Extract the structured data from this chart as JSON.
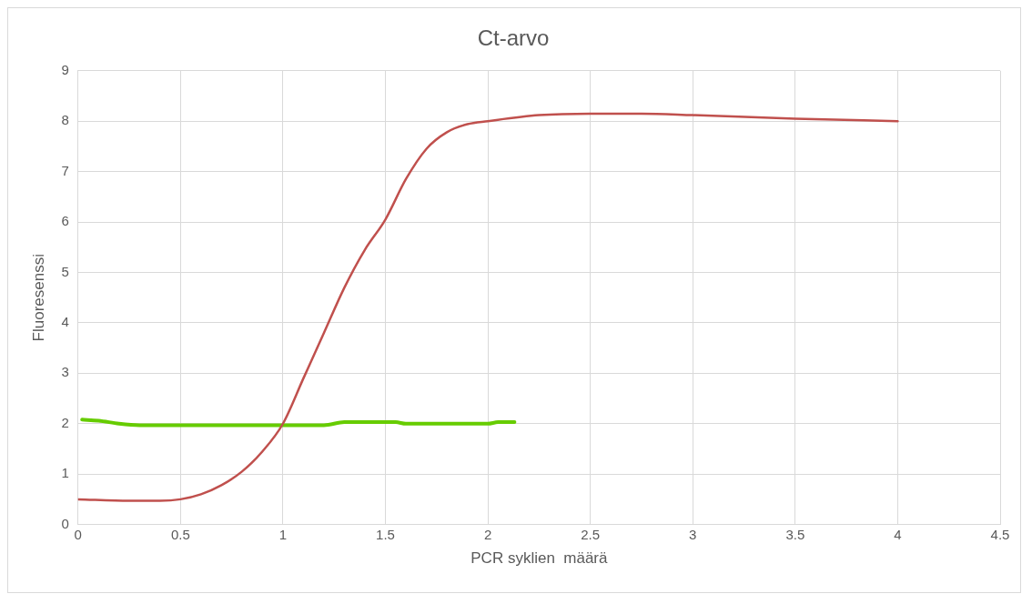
{
  "chart_data": {
    "type": "line",
    "title": "Ct-arvo",
    "xlabel": "PCR syklien  määrä",
    "ylabel": "Fluoresenssi",
    "xlim": [
      0,
      4.5
    ],
    "xticks": [
      0,
      0.5,
      1,
      1.5,
      2,
      2.5,
      3,
      3.5,
      4,
      4.5
    ],
    "ylim": [
      0,
      9
    ],
    "yticks": [
      0,
      1,
      2,
      3,
      4,
      5,
      6,
      7,
      8,
      9
    ],
    "grid": true,
    "legend": false,
    "marker": "none",
    "line_style": "solid",
    "series": [
      {
        "color": "#c0504d",
        "x": [
          0,
          0.25,
          0.4,
          0.5,
          0.6,
          0.7,
          0.8,
          0.9,
          1,
          1.1,
          1.2,
          1.3,
          1.4,
          1.5,
          1.6,
          1.7,
          1.8,
          1.9,
          2,
          2.25,
          2.5,
          2.75,
          3,
          3.5,
          4
        ],
        "values": [
          0.5,
          0.47,
          0.47,
          0.5,
          0.6,
          0.78,
          1.05,
          1.45,
          2,
          2.9,
          3.8,
          4.7,
          5.45,
          6.05,
          6.85,
          7.45,
          7.78,
          7.94,
          8,
          8.12,
          8.15,
          8.15,
          8.12,
          8.05,
          8
        ]
      },
      {
        "color": "#66cc00",
        "x": [
          0.02,
          0.1,
          0.2,
          0.3,
          0.5,
          1,
          1.2,
          1.3,
          1.55,
          1.6,
          1.8,
          2,
          2.05,
          2.13
        ],
        "values": [
          2.08,
          2.06,
          2,
          1.97,
          1.97,
          1.97,
          1.97,
          2.03,
          2.03,
          2,
          2,
          2,
          2.03,
          2.03
        ]
      }
    ]
  }
}
